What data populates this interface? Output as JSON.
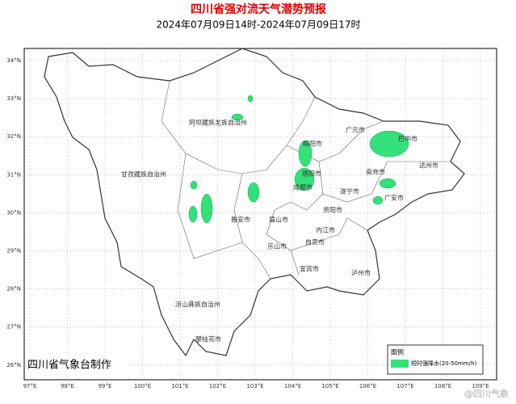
{
  "header": {
    "title": "四川省强对流天气潜势预报",
    "subtitle": "2024年07月09日14时-2024年07月09日17时"
  },
  "map": {
    "lat_labels": [
      "34°N",
      "33°N",
      "32°N",
      "31°N",
      "30°N",
      "29°N",
      "28°N",
      "27°N",
      "26°N"
    ],
    "lon_labels": [
      "97°E",
      "98°E",
      "99°E",
      "100°E",
      "101°E",
      "102°E",
      "103°E",
      "104°E",
      "105°E",
      "106°E",
      "107°E",
      "108°E",
      "109°E"
    ],
    "places": [
      "阿坝藏族羌族自治州",
      "甘孜藏族自治州",
      "绵阳市",
      "广元市",
      "巴中市",
      "达州市",
      "南充市",
      "德阳市",
      "成都市",
      "遂宁市",
      "广安市",
      "雅安市",
      "眉山市",
      "资阳市",
      "乐山市",
      "内江市",
      "自贡市",
      "宜宾市",
      "泸州市",
      "凉山彝族自治州",
      "攀枝花市"
    ]
  },
  "legend": {
    "title": "图例",
    "item": "短时强降水(20-50mm/h)"
  },
  "footer": "四川省气象台制作",
  "watermark": "@四川气象"
}
